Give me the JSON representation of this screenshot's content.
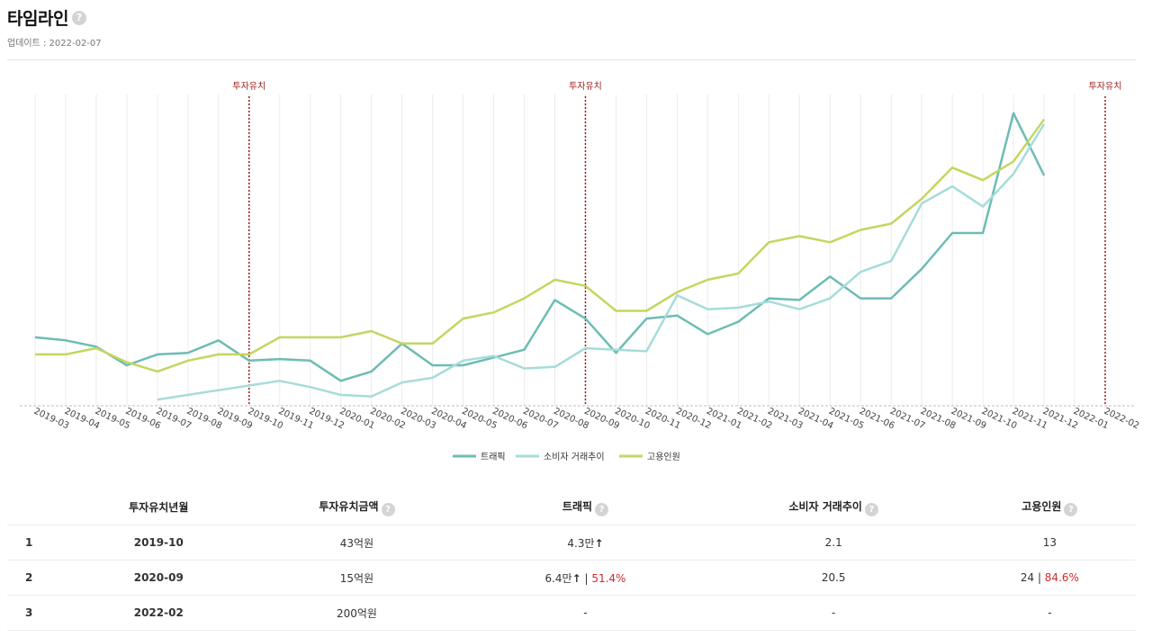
{
  "header": {
    "title": "타임라인",
    "help_icon": "?",
    "updated": "업데이트 : 2022-02-07"
  },
  "colors": {
    "traffic": "#6cbdb4",
    "consumer": "#a6dcd9",
    "employees": "#c4d660",
    "investment_line": "#9b1c1c",
    "grid": "#ececec"
  },
  "chart_data": {
    "type": "line",
    "categories": [
      "2019-03",
      "2019-04",
      "2019-05",
      "2019-06",
      "2019-07",
      "2019-08",
      "2019-09",
      "2019-10",
      "2019-11",
      "2019-12",
      "2020-01",
      "2020-02",
      "2020-03",
      "2020-04",
      "2020-05",
      "2020-06",
      "2020-07",
      "2020-08",
      "2020-09",
      "2020-10",
      "2020-11",
      "2020-12",
      "2021-01",
      "2021-02",
      "2021-03",
      "2021-04",
      "2021-05",
      "2021-06",
      "2021-07",
      "2021-08",
      "2021-09",
      "2021-10",
      "2021-11",
      "2021-12",
      "2022-01",
      "2022-02"
    ],
    "series": [
      {
        "name": "트래픽",
        "key": "traffic",
        "values": [
          0.22,
          0.21,
          0.19,
          0.13,
          0.165,
          0.17,
          0.21,
          0.145,
          0.15,
          0.145,
          0.08,
          0.11,
          0.2,
          0.13,
          0.13,
          0.155,
          0.18,
          0.34,
          0.28,
          0.17,
          0.28,
          0.29,
          0.23,
          0.27,
          0.345,
          0.34,
          0.415,
          0.345,
          0.345,
          0.44,
          0.555,
          0.555,
          0.94,
          0.74,
          null,
          null
        ]
      },
      {
        "name": "소비자 거래추이",
        "key": "consumer",
        "values": [
          null,
          null,
          null,
          null,
          0.02,
          0.035,
          0.05,
          0.065,
          0.08,
          0.06,
          0.035,
          0.03,
          0.075,
          0.09,
          0.145,
          0.16,
          0.12,
          0.125,
          0.185,
          0.18,
          0.175,
          0.355,
          0.31,
          0.315,
          0.335,
          0.31,
          0.345,
          0.43,
          0.465,
          0.65,
          0.705,
          0.64,
          0.745,
          0.905,
          null,
          null
        ]
      },
      {
        "name": "고용인원",
        "key": "employees",
        "values": [
          0.165,
          0.165,
          0.185,
          0.14,
          0.11,
          0.145,
          0.165,
          0.165,
          0.22,
          0.22,
          0.22,
          0.24,
          0.2,
          0.2,
          0.28,
          0.3,
          0.345,
          0.405,
          0.385,
          0.305,
          0.305,
          0.365,
          0.405,
          0.425,
          0.525,
          0.545,
          0.525,
          0.565,
          0.585,
          0.665,
          0.765,
          0.725,
          0.785,
          0.92,
          null,
          null
        ]
      }
    ],
    "investment_markers": [
      {
        "month": "2019-10",
        "label": "투자유치"
      },
      {
        "month": "2020-09",
        "label": "투자유치"
      },
      {
        "month": "2022-02",
        "label": "투자유치"
      }
    ],
    "ylim": [
      0,
      1
    ],
    "grid": true,
    "legend": "bottom-center"
  },
  "table": {
    "headers": {
      "date": "투자유치년월",
      "amount": "투자유치금액",
      "traffic": "트래픽",
      "consumer": "소비자 거래추이",
      "employees": "고용인원"
    },
    "rows": [
      {
        "idx": "1",
        "date": "2019-10",
        "amount": "43억원",
        "traffic": "4.3만",
        "traffic_arrow": "↑",
        "traffic_sep": "",
        "traffic_pct": "",
        "consumer": "2.1",
        "employees": "13",
        "employees_sep": "",
        "employees_pct": ""
      },
      {
        "idx": "2",
        "date": "2020-09",
        "amount": "15억원",
        "traffic": "6.4만",
        "traffic_arrow": "↑",
        "traffic_sep": " | ",
        "traffic_pct": "51.4%",
        "consumer": "20.5",
        "employees": "24",
        "employees_sep": " | ",
        "employees_pct": "84.6%"
      },
      {
        "idx": "3",
        "date": "2022-02",
        "amount": "200억원",
        "traffic": "-",
        "traffic_arrow": "",
        "traffic_sep": "",
        "traffic_pct": "",
        "consumer": "-",
        "employees": "-",
        "employees_sep": "",
        "employees_pct": ""
      }
    ]
  }
}
